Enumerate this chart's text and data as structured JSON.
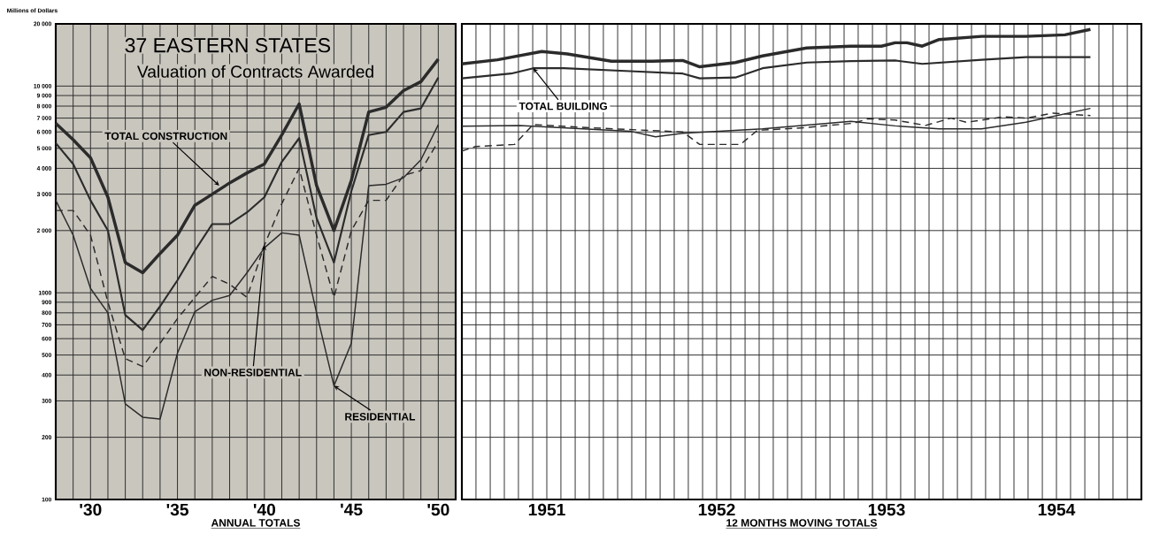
{
  "chart_data": [
    {
      "type": "line",
      "title": "37 EASTERN STATES",
      "subtitle": "Valuation of Contracts Awarded",
      "xlabel": "ANNUAL TOTALS",
      "ylabel": "Millions of Dollars",
      "x": [
        1928,
        1929,
        1930,
        1931,
        1932,
        1933,
        1934,
        1935,
        1936,
        1937,
        1938,
        1939,
        1940,
        1941,
        1942,
        1943,
        1944,
        1945,
        1946,
        1947,
        1948,
        1949,
        1950
      ],
      "series": [
        {
          "color": "#2b2b2b",
          "values": [
            6600,
            5500,
            4500,
            2900,
            1400,
            1250,
            1550,
            1900,
            2650,
            3000,
            3400,
            3800,
            4200,
            5800,
            8200,
            3300,
            2000,
            3500,
            7500,
            7900,
            9500,
            10500,
            13500
          ]
        },
        {
          "color": "#2b2b2b",
          "values": [
            5300,
            4200,
            2800,
            2000,
            780,
            660,
            860,
            1150,
            1600,
            2150,
            2150,
            2450,
            2900,
            4300,
            5600,
            2300,
            1400,
            3100,
            5800,
            6000,
            7500,
            7800,
            11000
          ]
        },
        {
          "color": "#2b2b2b",
          "line_style": "dashed",
          "values": [
            2500,
            2500,
            1900,
            900,
            480,
            440,
            570,
            750,
            950,
            1200,
            1100,
            950,
            1700,
            2700,
            4000,
            1900,
            950,
            2000,
            2800,
            2800,
            3700,
            3900,
            5400
          ]
        },
        {
          "color": "#2b2b2b",
          "values": [
            2800,
            1900,
            1050,
            800,
            290,
            250,
            245,
            510,
            810,
            920,
            970,
            1250,
            1650,
            1950,
            1900,
            800,
            355,
            570,
            3300,
            3350,
            3600,
            4400,
            6500
          ]
        }
      ],
      "annotations": [
        {
          "text": "TOTAL CONSTRUCTION",
          "x": 1937.4,
          "y": 3300
        },
        {
          "text": "NON-RESIDENTIAL",
          "x": 1940,
          "y": 1700
        },
        {
          "text": "RESIDENTIAL",
          "x": 1944,
          "y": 355
        }
      ],
      "log": "y",
      "grid": true,
      "xlim": [
        1928,
        1951
      ],
      "ylim": [
        100,
        20000
      ],
      "xticks": [
        {
          "value": 1928,
          "label": null
        },
        {
          "value": 1929,
          "label": null
        },
        {
          "value": 1930,
          "label": "'30"
        },
        {
          "value": 1931,
          "label": null
        },
        {
          "value": 1932,
          "label": null
        },
        {
          "value": 1933,
          "label": null
        },
        {
          "value": 1934,
          "label": null
        },
        {
          "value": 1935,
          "label": "'35"
        },
        {
          "value": 1936,
          "label": null
        },
        {
          "value": 1937,
          "label": null
        },
        {
          "value": 1938,
          "label": null
        },
        {
          "value": 1939,
          "label": null
        },
        {
          "value": 1940,
          "label": "'40"
        },
        {
          "value": 1941,
          "label": null
        },
        {
          "value": 1942,
          "label": null
        },
        {
          "value": 1943,
          "label": null
        },
        {
          "value": 1944,
          "label": null
        },
        {
          "value": 1945,
          "label": "'45"
        },
        {
          "value": 1946,
          "label": null
        },
        {
          "value": 1947,
          "label": null
        },
        {
          "value": 1948,
          "label": null
        },
        {
          "value": 1949,
          "label": null
        },
        {
          "value": 1950,
          "label": "'50"
        },
        {
          "value": 1951,
          "label": null
        }
      ],
      "yticks": [
        100,
        200,
        300,
        400,
        500,
        600,
        700,
        800,
        900,
        1000,
        {
          "value": 2000,
          "label": "2 000"
        },
        {
          "value": 3000,
          "label": "3 000"
        },
        {
          "value": 4000,
          "label": "4 000"
        },
        {
          "value": 5000,
          "label": "5 000"
        },
        {
          "value": 6000,
          "label": "6 000"
        },
        {
          "value": 7000,
          "label": "7 000"
        },
        {
          "value": 8000,
          "label": "8 000"
        },
        {
          "value": 9000,
          "label": "9 000"
        },
        {
          "value": 10000,
          "label": "10 000"
        },
        {
          "value": 20000,
          "label": "20 000"
        }
      ]
    },
    {
      "type": "line",
      "xlabel": "12 MONTHS MOVING TOTALS",
      "series": [
        {
          "color": "#2b2b2b",
          "x": [
            1951.0,
            1951.21,
            1951.47,
            1951.62,
            1951.88,
            1952.12,
            1952.3,
            1952.4,
            1952.61,
            1952.77,
            1953.03,
            1953.29,
            1953.47,
            1953.55,
            1953.62,
            1953.71,
            1953.81,
            1954.06,
            1954.32,
            1954.55,
            1954.7
          ],
          "values": [
            12800,
            13400,
            14700,
            14300,
            13200,
            13200,
            13300,
            12400,
            13000,
            14000,
            15300,
            15600,
            15600,
            16200,
            16200,
            15600,
            16800,
            17400,
            17400,
            17700,
            18800
          ]
        },
        {
          "color": "#2b2b2b",
          "x": [
            1951.0,
            1951.29,
            1951.42,
            1951.6,
            1951.99,
            1952.3,
            1952.4,
            1952.61,
            1952.77,
            1953.03,
            1953.29,
            1953.55,
            1953.71,
            1954.06,
            1954.32,
            1954.7
          ],
          "values": [
            10900,
            11500,
            12200,
            12200,
            11800,
            11500,
            10900,
            11000,
            12200,
            13000,
            13200,
            13300,
            12800,
            13400,
            13800,
            13800
          ]
        },
        {
          "color": "#2b2b2b",
          "line_style": "dashed",
          "x": [
            1951.0,
            1951.08,
            1951.31,
            1951.42,
            1951.73,
            1952.3,
            1952.4,
            1952.64,
            1952.74,
            1953.03,
            1953.31,
            1953.39,
            1953.55,
            1953.73,
            1953.88,
            1953.97,
            1954.19,
            1954.32,
            1954.48,
            1954.7
          ],
          "values": [
            4850,
            5100,
            5220,
            6520,
            6300,
            6000,
            5220,
            5220,
            6110,
            6300,
            6620,
            6950,
            6850,
            6450,
            7000,
            6680,
            7100,
            7000,
            7400,
            7200
          ]
        },
        {
          "color": "#2b2b2b",
          "x": [
            1951.0,
            1951.34,
            1951.99,
            1952.14,
            1952.3,
            1952.77,
            1953.29,
            1953.55,
            1953.81,
            1954.06,
            1954.32,
            1954.7
          ],
          "values": [
            6400,
            6450,
            6050,
            5680,
            5910,
            6210,
            6750,
            6420,
            6210,
            6210,
            6680,
            7800
          ]
        }
      ],
      "annotations": [
        {
          "text": "TOTAL BUILDING",
          "x": 1951.42,
          "y": 12200
        }
      ],
      "log": "y",
      "grid": true,
      "tick_labels": "x",
      "xlim": [
        1951,
        1955
      ],
      "ylim": [
        100,
        20000
      ],
      "yticks": [
        100,
        200,
        300,
        400,
        500,
        600,
        700,
        800,
        900,
        1000,
        2000,
        3000,
        4000,
        5000,
        6000,
        7000,
        8000,
        9000,
        10000,
        20000
      ],
      "xticks": [
        {
          "value": 1951,
          "label": null
        },
        {
          "value": 1951.083,
          "label": null
        },
        {
          "value": 1951.167,
          "label": null
        },
        {
          "value": 1951.25,
          "label": null
        },
        {
          "value": 1951.333,
          "label": null
        },
        {
          "value": 1951.417,
          "label": null
        },
        {
          "value": 1951.5,
          "label": "1951"
        },
        {
          "value": 1951.583,
          "label": null
        },
        {
          "value": 1951.667,
          "label": null
        },
        {
          "value": 1951.75,
          "label": null
        },
        {
          "value": 1951.833,
          "label": null
        },
        {
          "value": 1951.917,
          "label": null
        },
        {
          "value": 1952,
          "label": null
        },
        {
          "value": 1952.083,
          "label": null
        },
        {
          "value": 1952.167,
          "label": null
        },
        {
          "value": 1952.25,
          "label": null
        },
        {
          "value": 1952.333,
          "label": null
        },
        {
          "value": 1952.417,
          "label": null
        },
        {
          "value": 1952.5,
          "label": "1952"
        },
        {
          "value": 1952.583,
          "label": null
        },
        {
          "value": 1952.667,
          "label": null
        },
        {
          "value": 1952.75,
          "label": null
        },
        {
          "value": 1952.833,
          "label": null
        },
        {
          "value": 1952.917,
          "label": null
        },
        {
          "value": 1953,
          "label": null
        },
        {
          "value": 1953.083,
          "label": null
        },
        {
          "value": 1953.167,
          "label": null
        },
        {
          "value": 1953.25,
          "label": null
        },
        {
          "value": 1953.333,
          "label": null
        },
        {
          "value": 1953.417,
          "label": null
        },
        {
          "value": 1953.5,
          "label": "1953"
        },
        {
          "value": 1953.583,
          "label": null
        },
        {
          "value": 1953.667,
          "label": null
        },
        {
          "value": 1953.75,
          "label": null
        },
        {
          "value": 1953.833,
          "label": null
        },
        {
          "value": 1953.917,
          "label": null
        },
        {
          "value": 1954,
          "label": null
        },
        {
          "value": 1954.083,
          "label": null
        },
        {
          "value": 1954.167,
          "label": null
        },
        {
          "value": 1954.25,
          "label": null
        },
        {
          "value": 1954.333,
          "label": null
        },
        {
          "value": 1954.417,
          "label": null
        },
        {
          "value": 1954.5,
          "label": "1954"
        },
        {
          "value": 1954.583,
          "label": null
        },
        {
          "value": 1954.667,
          "label": null
        },
        {
          "value": 1954.75,
          "label": null
        },
        {
          "value": 1954.833,
          "label": null
        },
        {
          "value": 1954.917,
          "label": null
        },
        {
          "value": 1955,
          "label": null
        }
      ]
    }
  ]
}
